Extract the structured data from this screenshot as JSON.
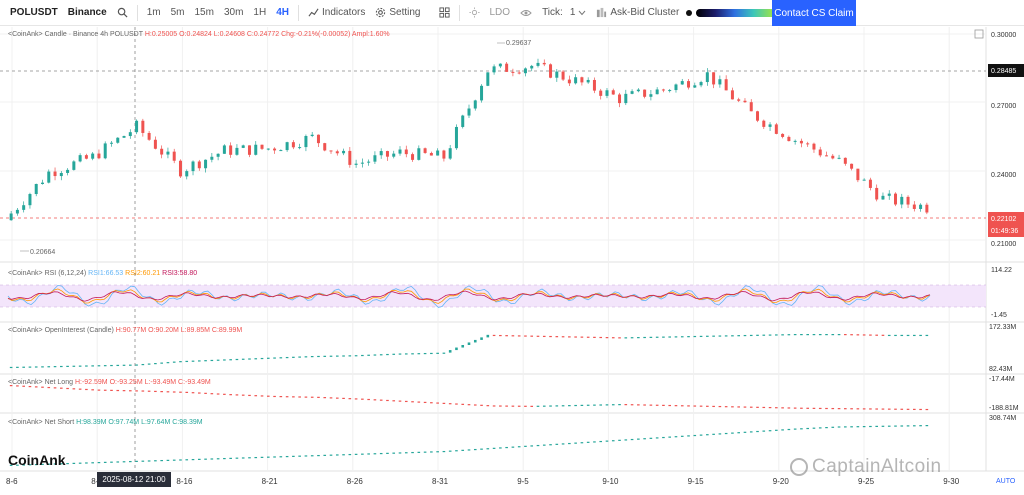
{
  "toolbar": {
    "symbol": "POLUSDT",
    "exchange": "Binance",
    "timeframes": [
      "1m",
      "5m",
      "15m",
      "30m",
      "1H",
      "4H"
    ],
    "active_timeframe": "4H",
    "indicators_label": "Indicators",
    "setting_label": "Setting",
    "symbol_label": "LDO",
    "tick_label": "Tick:",
    "tick_value": "1",
    "cluster_label": "Ask-Bid Cluster",
    "contact_label": "Contact CS Claim"
  },
  "colors": {
    "up": "#26a69a",
    "down": "#ef5350",
    "accent": "#2962ff",
    "rsi_band": "#f3e5fb"
  },
  "icons": [
    "search-icon",
    "indicators-icon",
    "gear-icon",
    "grid-icon",
    "brightness-icon",
    "eye-icon",
    "chevron-down-icon",
    "settings-square-icon"
  ],
  "price_pane": {
    "legend": "<CoinAnk> Candle · Binance 4h POLUSDT",
    "ohlc": "H:0.25005  O:0.24824  L:0.24608  C:0.24772  Chg:-0.21%(-0.00052)  Ampl:1.60%",
    "hi_label": "0.29637",
    "lo_label": "0.20664",
    "ref_price": "0.28485",
    "last_price": "0.22102",
    "countdown": "01:49:36",
    "axis_ticks": [
      "0.30000",
      "0.27000",
      "0.24000",
      "0.21000"
    ]
  },
  "rsi_pane": {
    "legend": "<CoinAnk> RSI  (6,12,24)",
    "rsi1": "RSI1:66.53",
    "rsi2": "RSI2:60.21",
    "rsi3": "RSI3:58.80",
    "top_value": "114.22",
    "bottom_value": "-1.45"
  },
  "oi_pane": {
    "legend": "<CoinAnk> OpenInterest (Candle)",
    "values": "H:90.77M  O:90.20M  L:89.85M  C:89.99M",
    "top_value": "172.33M",
    "bottom_value": "82.43M"
  },
  "netlong_pane": {
    "legend": "<CoinAnk> Net Long",
    "values": "H:-92.59M  O:-93.25M  L:-93.49M  C:-93.49M",
    "top_value": "-17.44M",
    "bottom_value": "-188.81M"
  },
  "netshort_pane": {
    "legend": "<CoinAnk> Net Short",
    "values": "H:98.39M  O:97.74M  L:97.64M  C:98.39M",
    "top_value": "308.74M"
  },
  "x_axis": {
    "dates": [
      "8-6",
      "8-11",
      "8-16",
      "8-21",
      "8-26",
      "8-31",
      "9-5",
      "9-10",
      "9-15",
      "9-20",
      "9-25",
      "9-30"
    ],
    "crosshair_time": "2025-08-12 21:00",
    "auto_label": "AUTO"
  },
  "brand": "CoinAnk",
  "watermark": "CaptainAltcoin",
  "chart_data": {
    "type": "candlestick",
    "title": "POLUSDT 4h",
    "x": [
      "8-6",
      "8-8",
      "8-11",
      "8-13",
      "8-16",
      "8-18",
      "8-21",
      "8-23",
      "8-26",
      "8-28",
      "8-31",
      "9-2",
      "9-5",
      "9-7",
      "9-10",
      "9-12",
      "9-15",
      "9-17",
      "9-20",
      "9-22",
      "9-25",
      "9-27"
    ],
    "close": [
      0.216,
      0.238,
      0.245,
      0.259,
      0.239,
      0.248,
      0.249,
      0.254,
      0.242,
      0.247,
      0.245,
      0.285,
      0.287,
      0.28,
      0.272,
      0.276,
      0.283,
      0.265,
      0.253,
      0.243,
      0.226,
      0.222
    ],
    "ylim": [
      0.2,
      0.303
    ],
    "series": [
      {
        "name": "OpenInterest",
        "values": [
          83,
          84,
          85,
          86,
          90,
          92,
          94,
          96,
          97,
          99,
          100,
          121,
          120,
          119,
          118,
          119,
          120,
          121,
          122,
          122,
          121,
          121
        ]
      },
      {
        "name": "Net Long",
        "values": [
          -40,
          -45,
          -50,
          -52,
          -55,
          -60,
          -64,
          -66,
          -70,
          -75,
          -80,
          -85,
          -86,
          -84,
          -82,
          -84,
          -86,
          -88,
          -90,
          -91,
          -92,
          -93
        ]
      },
      {
        "name": "Net Short",
        "values": [
          20,
          30,
          40,
          50,
          60,
          70,
          80,
          90,
          100,
          110,
          120,
          140,
          160,
          180,
          200,
          220,
          240,
          260,
          280,
          295,
          300,
          305
        ]
      }
    ]
  }
}
